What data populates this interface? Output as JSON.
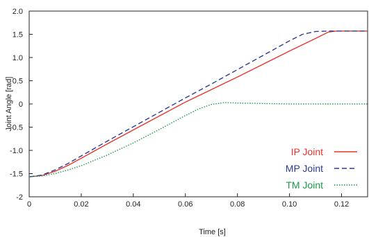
{
  "chart_data": {
    "type": "line",
    "xlabel": "Time [s]",
    "ylabel": "Joint Angle [rad]",
    "xlim": [
      0,
      0.13
    ],
    "ylim": [
      -2.0,
      2.0
    ],
    "grid": false,
    "legend_position": "bottom-right",
    "x_ticks": [
      {
        "value": 0,
        "label": "0"
      },
      {
        "value": 0.02,
        "label": "0.02"
      },
      {
        "value": 0.04,
        "label": "0.04"
      },
      {
        "value": 0.06,
        "label": "0.06"
      },
      {
        "value": 0.08,
        "label": "0.08"
      },
      {
        "value": 0.1,
        "label": "0.10"
      },
      {
        "value": 0.12,
        "label": "0.12"
      }
    ],
    "y_ticks": [
      {
        "value": 2.0,
        "label": "2.0"
      },
      {
        "value": 1.5,
        "label": "1.5"
      },
      {
        "value": 1.0,
        "label": "1.0"
      },
      {
        "value": 0.5,
        "label": "0.5"
      },
      {
        "value": 0,
        "label": "0"
      },
      {
        "value": -0.5,
        "label": "-0.5"
      },
      {
        "value": -1.0,
        "label": "-1.0"
      },
      {
        "value": -1.5,
        "label": "-1.5"
      },
      {
        "value": -2.0,
        "label": "-2"
      }
    ],
    "series": [
      {
        "name": "IP Joint",
        "color": "#e8342c",
        "dash": "solid",
        "x": [
          0,
          0.005,
          0.01,
          0.015,
          0.02,
          0.03,
          0.04,
          0.05,
          0.06,
          0.07,
          0.08,
          0.09,
          0.1,
          0.11,
          0.115,
          0.118,
          0.12,
          0.125,
          0.13
        ],
        "y": [
          -1.57,
          -1.54,
          -1.45,
          -1.32,
          -1.17,
          -0.86,
          -0.56,
          -0.26,
          0.04,
          0.31,
          0.58,
          0.86,
          1.14,
          1.41,
          1.55,
          1.57,
          1.57,
          1.57,
          1.57
        ]
      },
      {
        "name": "MP Joint",
        "color": "#2b3a92",
        "dash": "dashed",
        "x": [
          0,
          0.005,
          0.01,
          0.015,
          0.02,
          0.03,
          0.04,
          0.05,
          0.06,
          0.07,
          0.08,
          0.09,
          0.1,
          0.105,
          0.11,
          0.115,
          0.12,
          0.13
        ],
        "y": [
          -1.57,
          -1.53,
          -1.42,
          -1.28,
          -1.12,
          -0.8,
          -0.49,
          -0.18,
          0.13,
          0.43,
          0.74,
          1.05,
          1.36,
          1.5,
          1.56,
          1.57,
          1.57,
          1.57
        ]
      },
      {
        "name": "TM Joint",
        "color": "#1a9a4a",
        "dash": "dotted",
        "x": [
          0,
          0.005,
          0.01,
          0.015,
          0.02,
          0.03,
          0.04,
          0.05,
          0.06,
          0.065,
          0.07,
          0.075,
          0.08,
          0.09,
          0.1,
          0.11,
          0.12,
          0.13
        ],
        "y": [
          -1.57,
          -1.55,
          -1.5,
          -1.42,
          -1.33,
          -1.1,
          -0.84,
          -0.55,
          -0.25,
          -0.11,
          -0.01,
          0.03,
          0.02,
          0.01,
          0.0,
          0.0,
          0.0,
          0.0
        ]
      }
    ]
  }
}
